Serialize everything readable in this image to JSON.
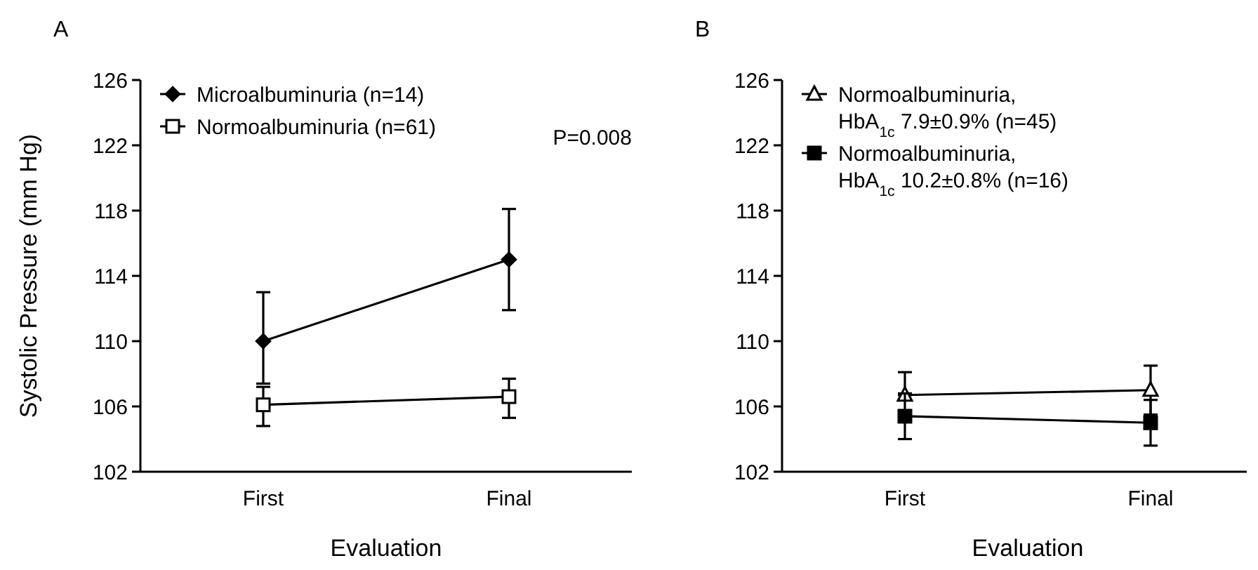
{
  "chart_data": [
    {
      "type": "line",
      "title": "A",
      "xlabel": "Evaluation",
      "ylabel": "Systolic Pressure (mm Hg)",
      "categories": [
        "First",
        "Final"
      ],
      "ylim": [
        102,
        126
      ],
      "yticks": [
        102,
        106,
        110,
        114,
        118,
        122,
        126
      ],
      "legend": "top left",
      "annotations": [
        "P=0.008"
      ],
      "series": [
        {
          "name": "Microalbuminuria (n=14)",
          "color": "#000000",
          "marker": "diamond",
          "values": [
            110,
            115
          ],
          "errors": [
            [
              107.4,
              113
            ],
            [
              111.9,
              118.1
            ]
          ]
        },
        {
          "name": "Normoalbuminuria (n=61)",
          "color": "#000000",
          "marker": "square-open",
          "values": [
            106.1,
            106.6
          ],
          "errors": [
            [
              104.8,
              107.2
            ],
            [
              105.3,
              107.7
            ]
          ]
        }
      ]
    },
    {
      "type": "line",
      "title": "B",
      "xlabel": "Evaluation",
      "categories": [
        "First",
        "Final"
      ],
      "ylim": [
        102,
        126
      ],
      "yticks": [
        102,
        106,
        110,
        114,
        118,
        122,
        126
      ],
      "legend": "top left",
      "series": [
        {
          "name": "Normoalbuminuria, HbA$_{1c}$ 7.9±0.9% (n=45)",
          "color": "#000000",
          "marker": "triangle-open",
          "values": [
            106.7,
            107
          ],
          "errors": [
            [
              106.7,
              108.1
            ],
            [
              105.5,
              108.5
            ]
          ]
        },
        {
          "name": "Normoalbuminuria, HbA$_{1c}$ 10.2±0.8% (n=16)",
          "color": "#000000",
          "marker": "square",
          "values": [
            105.4,
            105
          ],
          "errors": [
            [
              104,
              106.8
            ],
            [
              103.6,
              106.4
            ]
          ]
        }
      ]
    }
  ]
}
